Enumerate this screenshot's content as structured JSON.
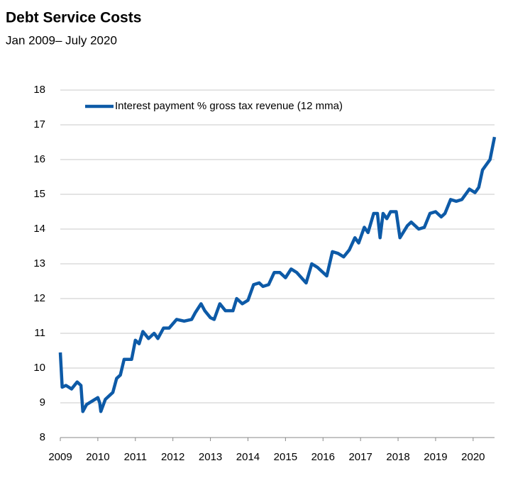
{
  "chart_data": {
    "type": "line",
    "title": "Debt Service Costs",
    "subtitle": "Jan 2009– July 2020",
    "xlim": [
      2009,
      2020.57
    ],
    "xticks": [
      2009,
      2010,
      2011,
      2012,
      2013,
      2014,
      2015,
      2016,
      2017,
      2018,
      2019,
      2020
    ],
    "ylim": [
      8,
      18
    ],
    "yticks": [
      8,
      9,
      10,
      11,
      12,
      13,
      14,
      15,
      16,
      17,
      18
    ],
    "grid": true,
    "legend": "top-left",
    "x": [
      2009.0,
      2009.05,
      2009.15,
      2009.3,
      2009.45,
      2009.55,
      2009.6,
      2009.7,
      2009.85,
      2010.0,
      2010.05,
      2010.08,
      2010.2,
      2010.4,
      2010.5,
      2010.6,
      2010.7,
      2010.9,
      2011.0,
      2011.1,
      2011.2,
      2011.35,
      2011.5,
      2011.6,
      2011.75,
      2011.9,
      2012.1,
      2012.3,
      2012.5,
      2012.6,
      2012.75,
      2012.85,
      2013.0,
      2013.1,
      2013.25,
      2013.4,
      2013.6,
      2013.7,
      2013.85,
      2014.0,
      2014.15,
      2014.3,
      2014.4,
      2014.55,
      2014.7,
      2014.85,
      2015.0,
      2015.15,
      2015.3,
      2015.55,
      2015.7,
      2015.85,
      2016.1,
      2016.25,
      2016.4,
      2016.55,
      2016.7,
      2016.85,
      2016.95,
      2017.1,
      2017.2,
      2017.35,
      2017.45,
      2017.52,
      2017.6,
      2017.7,
      2017.8,
      2017.95,
      2018.05,
      2018.25,
      2018.35,
      2018.55,
      2018.7,
      2018.85,
      2019.0,
      2019.15,
      2019.25,
      2019.4,
      2019.55,
      2019.7,
      2019.9,
      2020.05,
      2020.15,
      2020.25,
      2020.35,
      2020.45,
      2020.57
    ],
    "series": [
      {
        "name": "Interest payment % gross tax revenue (12 mma)",
        "color": "#0d5aa7",
        "values": [
          10.45,
          9.45,
          9.5,
          9.4,
          9.6,
          9.5,
          8.75,
          8.95,
          9.05,
          9.15,
          9.0,
          8.75,
          9.1,
          9.3,
          9.7,
          9.8,
          10.25,
          10.25,
          10.8,
          10.7,
          11.05,
          10.85,
          11.0,
          10.85,
          11.15,
          11.15,
          11.4,
          11.35,
          11.4,
          11.6,
          11.85,
          11.65,
          11.45,
          11.4,
          11.85,
          11.65,
          11.65,
          12.0,
          11.85,
          11.95,
          12.4,
          12.45,
          12.35,
          12.4,
          12.75,
          12.75,
          12.6,
          12.85,
          12.75,
          12.45,
          13.0,
          12.9,
          12.65,
          13.35,
          13.3,
          13.2,
          13.4,
          13.75,
          13.6,
          14.05,
          13.9,
          14.45,
          14.45,
          13.75,
          14.45,
          14.3,
          14.5,
          14.5,
          13.75,
          14.1,
          14.2,
          14.0,
          14.05,
          14.45,
          14.5,
          14.35,
          14.45,
          14.85,
          14.8,
          14.85,
          15.15,
          15.05,
          15.2,
          15.7,
          15.85,
          16.0,
          16.65
        ]
      }
    ]
  }
}
